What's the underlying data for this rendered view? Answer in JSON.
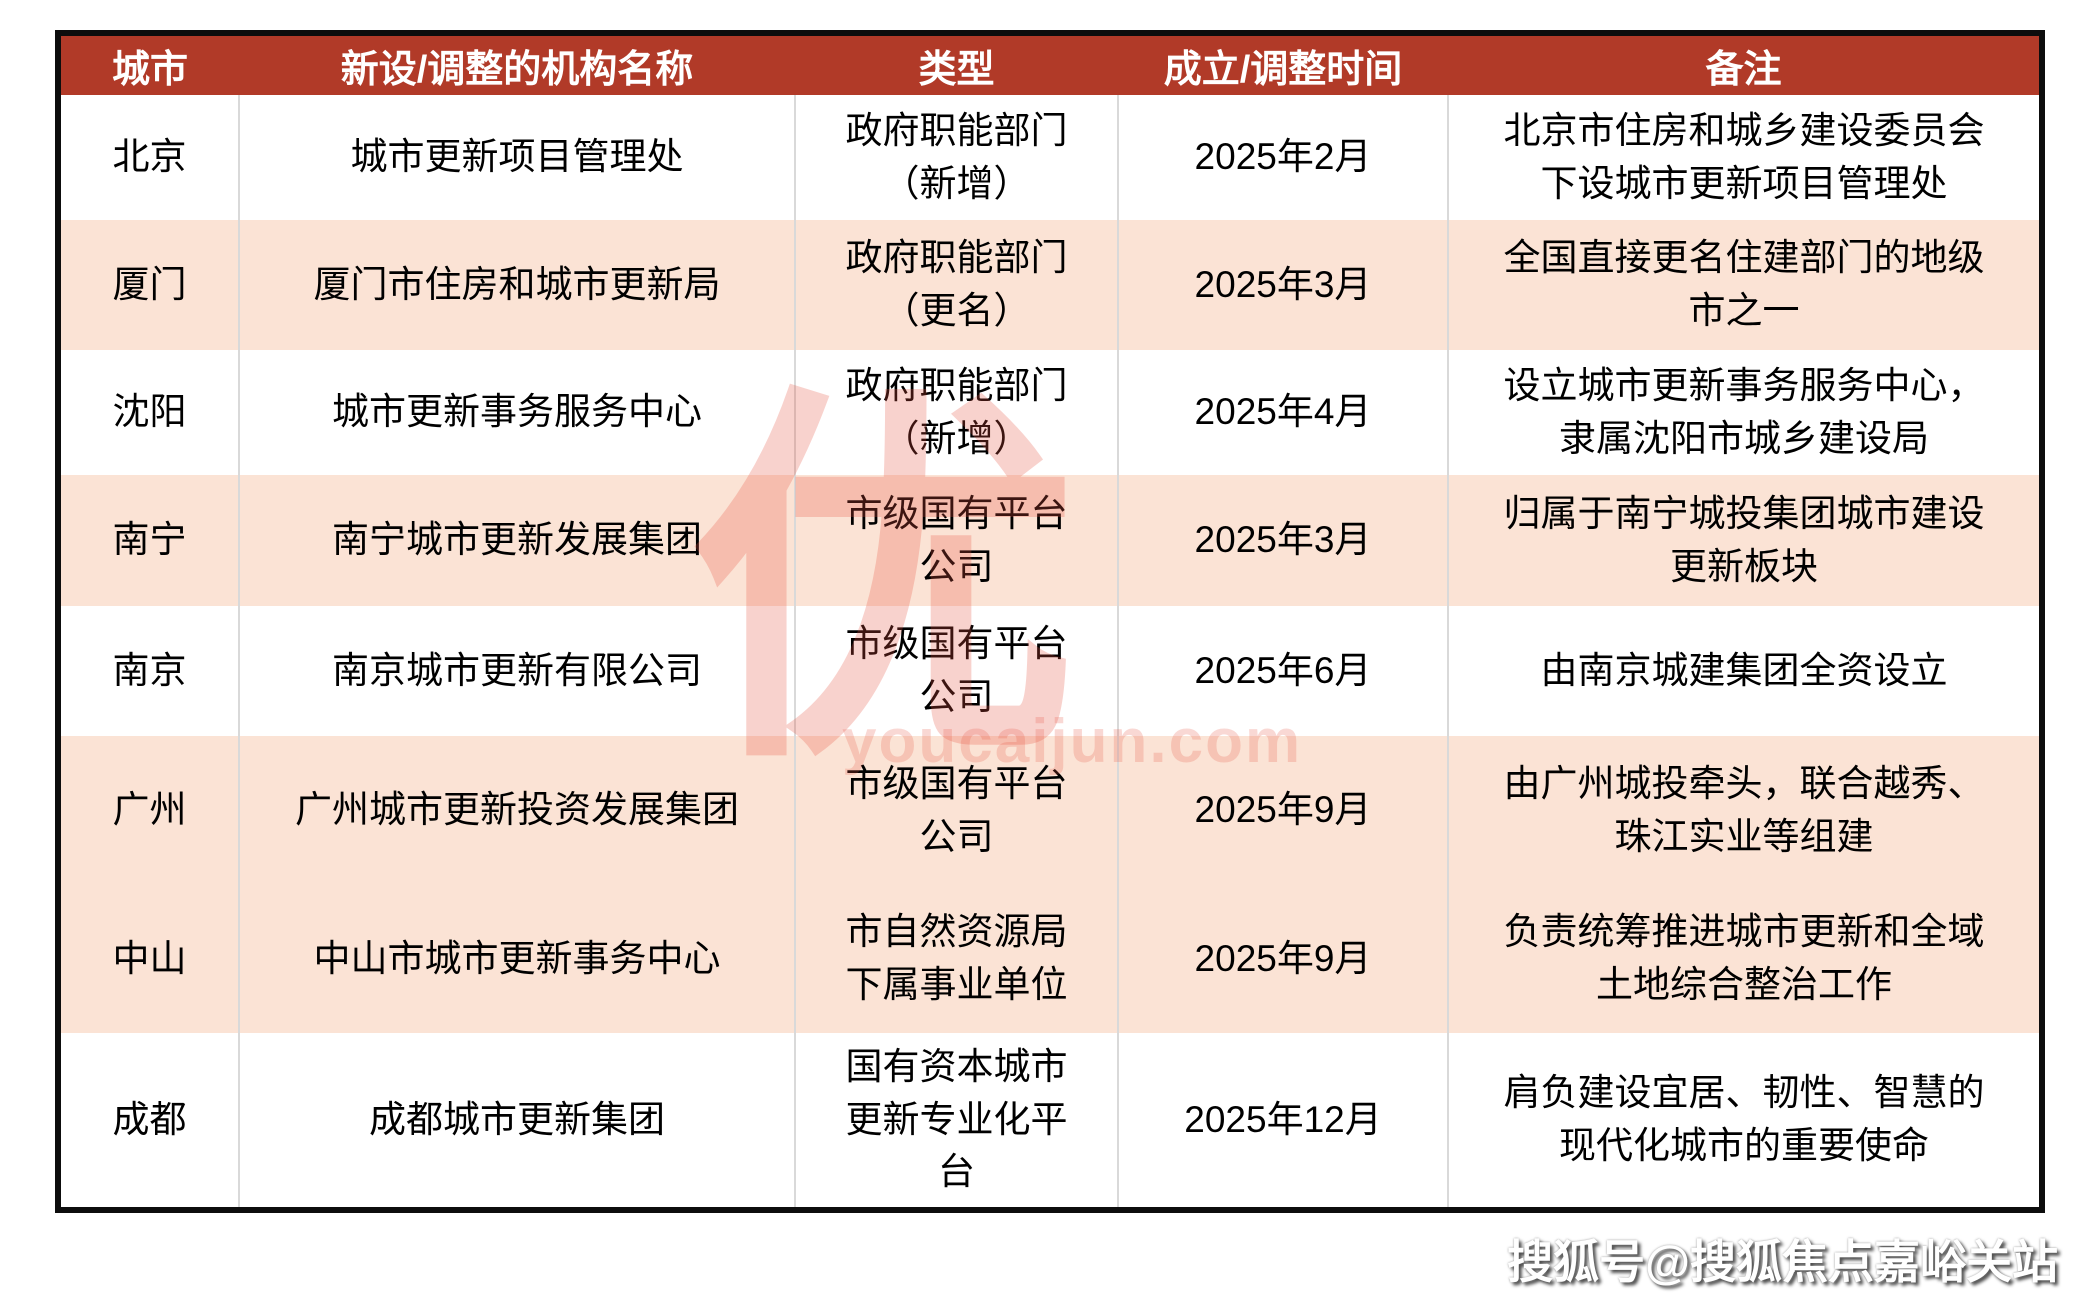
{
  "table": {
    "columns": [
      "城市",
      "新设/调整的机构名称",
      "类型",
      "成立/调整时间",
      "备注"
    ],
    "rows": [
      {
        "city": "北京",
        "org": "城市更新项目管理处",
        "type": "政府职能部门\n（新增）",
        "date": "2025年2月",
        "note": "北京市住房和城乡建设委员会\n下设城市更新项目管理处"
      },
      {
        "city": "厦门",
        "org": "厦门市住房和城市更新局",
        "type": "政府职能部门\n（更名）",
        "date": "2025年3月",
        "note": "全国直接更名住建部门的地级\n市之一"
      },
      {
        "city": "沈阳",
        "org": "城市更新事务服务中心",
        "type": "政府职能部门\n（新增）",
        "date": "2025年4月",
        "note": "设立城市更新事务服务中心，\n隶属沈阳市城乡建设局"
      },
      {
        "city": "南宁",
        "org": "南宁城市更新发展集团",
        "type": "市级国有平台\n公司",
        "date": "2025年3月",
        "note": "归属于南宁城投集团城市建设\n更新板块"
      },
      {
        "city": "南京",
        "org": "南京城市更新有限公司",
        "type": "市级国有平台\n公司",
        "date": "2025年6月",
        "note": "由南京城建集团全资设立"
      },
      {
        "city": "广州",
        "org": "广州城市更新投资发展集团",
        "type": "市级国有平台\n公司",
        "date": "2025年9月",
        "note": "由广州城投牵头，联合越秀、\n珠江实业等组建"
      },
      {
        "city": "中山",
        "org": "中山市城市更新事务中心",
        "type": "市自然资源局\n下属事业单位",
        "date": "2025年9月",
        "note": "负责统筹推进城市更新和全域\n土地综合整治工作"
      },
      {
        "city": "成都",
        "org": "成都城市更新集团",
        "type": "国有资本城市\n更新专业化平\n台",
        "date": "2025年12月",
        "note": "肩负建设宜居、韧性、智慧的\n现代化城市的重要使命"
      }
    ],
    "shaded_row_indices": [
      1,
      3,
      5,
      6
    ]
  },
  "watermarks": {
    "center_logo_glyph": "优",
    "center_site_text": "youcaijun.com",
    "bottom_right_text": "搜狐号@搜狐焦点嘉峪关站"
  },
  "colors": {
    "header_bg": "#B13A28",
    "header_text": "#FFFFFF",
    "shaded_row_bg": "#FBE3D5",
    "table_border": "#0D0D0D",
    "column_grid": "#D9D9D9",
    "watermark_red": "#E85442"
  }
}
